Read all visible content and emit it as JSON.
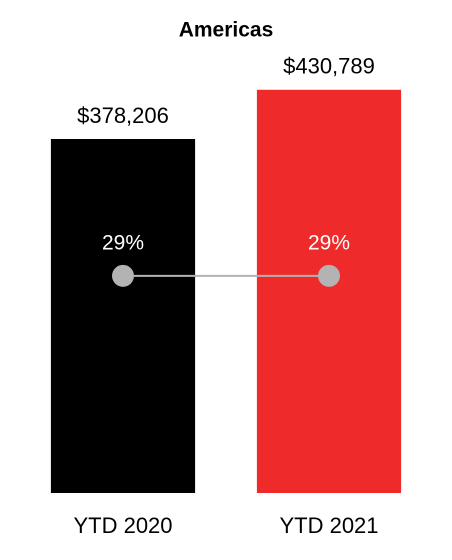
{
  "chart_data": {
    "type": "bar",
    "title": "Americas",
    "categories": [
      "YTD 2020",
      "YTD 2021"
    ],
    "series": [
      {
        "type": "bar",
        "colors": [
          "#000000",
          "#ee2a2a"
        ],
        "values": [
          378206,
          430789
        ],
        "value_labels": [
          "$378,206",
          "$430,789"
        ]
      },
      {
        "type": "line",
        "axis": "y2",
        "color": "#b3b3b3",
        "values": [
          29,
          29
        ],
        "value_labels": [
          "29%",
          "29%"
        ]
      }
    ],
    "ylim": [
      0,
      500000
    ],
    "y2lim": [
      0,
      62.5
    ]
  }
}
